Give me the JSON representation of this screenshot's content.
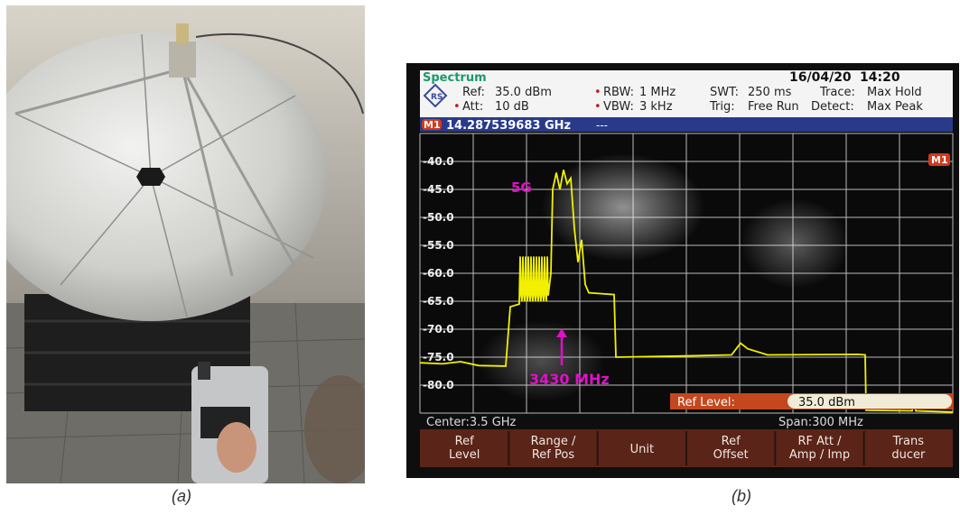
{
  "captions": {
    "a": "(a)",
    "b": "(b)"
  },
  "analyzer": {
    "mode": "Spectrum",
    "date": "16/04/20",
    "time": "14:20",
    "ref_label": "Ref:",
    "ref_value": "35.0 dBm",
    "att_label": "Att:",
    "att_value": "10 dB",
    "rbw_label": "RBW:",
    "rbw_value": "1 MHz",
    "vbw_label": "VBW:",
    "vbw_value": "3 kHz",
    "swt_label": "SWT:",
    "swt_value": "250 ms",
    "trig_label": "Trig:",
    "trig_value": "Free Run",
    "trace_label": "Trace:",
    "trace_value": "Max Hold",
    "detect_label": "Detect:",
    "detect_value": "Max Peak",
    "marker_tag": "M1",
    "marker_freq": "14.287539683  GHz",
    "marker_extra": "---",
    "y_ticks": [
      "-40.0",
      "-45.0",
      "-50.0",
      "-55.0",
      "-60.0",
      "-65.0",
      "-70.0",
      "-75.0",
      "-80.0"
    ],
    "annotation_5g": "5G",
    "annotation_freq": "3430 MHz",
    "ref_level_label": "Ref Level:",
    "ref_level_value": "35.0 dBm",
    "center": "Center:3.5 GHz",
    "span": "Span:300 MHz",
    "softkeys": [
      {
        "line1": "Ref",
        "line2": "Level"
      },
      {
        "line1": "Range /",
        "line2": "Ref Pos"
      },
      {
        "line1": "Unit",
        "line2": ""
      },
      {
        "line1": "Ref",
        "line2": "Offset"
      },
      {
        "line1": "RF Att /",
        "line2": "Amp / Imp"
      },
      {
        "line1": "Trans",
        "line2": "ducer"
      }
    ],
    "colors": {
      "trace": "#f2f000",
      "annotation": "#e010c8",
      "grid": "#d8d8d8",
      "screen": "#101010"
    }
  }
}
